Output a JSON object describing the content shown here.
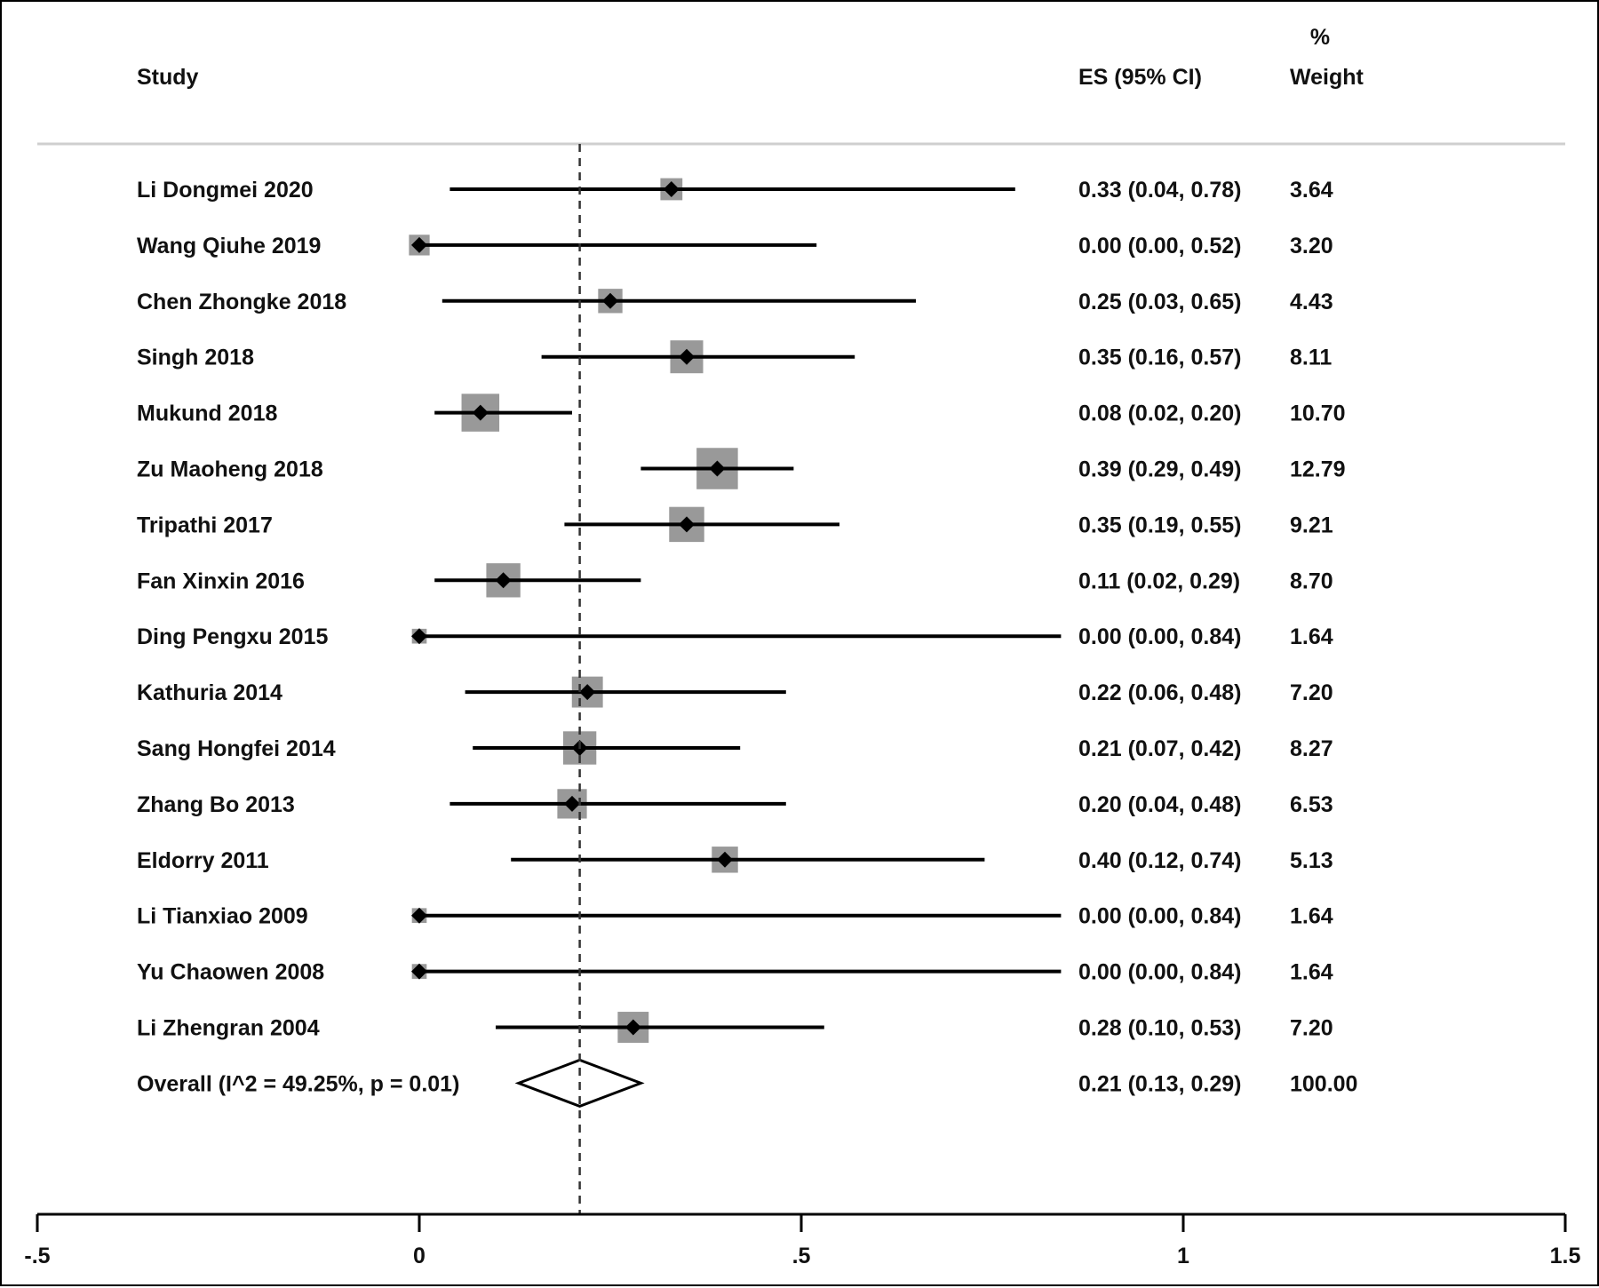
{
  "chart_data": {
    "type": "forest",
    "headers": {
      "study": "Study",
      "es": "ES (95% CI)",
      "weight_line1": "%",
      "weight_line2": "Weight"
    },
    "studies": [
      {
        "label": "Li Dongmei 2020",
        "es": 0.33,
        "lo": 0.04,
        "hi": 0.78,
        "es_text": "0.33 (0.04, 0.78)",
        "weight": 3.64,
        "weight_text": "3.64"
      },
      {
        "label": "Wang Qiuhe  2019",
        "es": 0.0,
        "lo": 0.0,
        "hi": 0.52,
        "es_text": "0.00 (0.00, 0.52)",
        "weight": 3.2,
        "weight_text": "3.20"
      },
      {
        "label": "Chen Zhongke 2018",
        "es": 0.25,
        "lo": 0.03,
        "hi": 0.65,
        "es_text": "0.25 (0.03, 0.65)",
        "weight": 4.43,
        "weight_text": "4.43"
      },
      {
        "label": "Singh 2018",
        "es": 0.35,
        "lo": 0.16,
        "hi": 0.57,
        "es_text": "0.35 (0.16, 0.57)",
        "weight": 8.11,
        "weight_text": "8.11"
      },
      {
        "label": "Mukund  2018",
        "es": 0.08,
        "lo": 0.02,
        "hi": 0.2,
        "es_text": "0.08 (0.02, 0.20)",
        "weight": 10.7,
        "weight_text": "10.70"
      },
      {
        "label": "Zu Maoheng 2018",
        "es": 0.39,
        "lo": 0.29,
        "hi": 0.49,
        "es_text": "0.39 (0.29, 0.49)",
        "weight": 12.79,
        "weight_text": "12.79"
      },
      {
        "label": "Tripathi  2017",
        "es": 0.35,
        "lo": 0.19,
        "hi": 0.55,
        "es_text": "0.35 (0.19, 0.55)",
        "weight": 9.21,
        "weight_text": "9.21"
      },
      {
        "label": "Fan Xinxin 2016",
        "es": 0.11,
        "lo": 0.02,
        "hi": 0.29,
        "es_text": "0.11 (0.02, 0.29)",
        "weight": 8.7,
        "weight_text": "8.70"
      },
      {
        "label": "Ding Pengxu 2015",
        "es": 0.0,
        "lo": 0.0,
        "hi": 0.84,
        "es_text": "0.00 (0.00, 0.84)",
        "weight": 1.64,
        "weight_text": "1.64"
      },
      {
        "label": "Kathuria  2014",
        "es": 0.22,
        "lo": 0.06,
        "hi": 0.48,
        "es_text": "0.22 (0.06, 0.48)",
        "weight": 7.2,
        "weight_text": "7.20"
      },
      {
        "label": "Sang Hongfei 2014",
        "es": 0.21,
        "lo": 0.07,
        "hi": 0.42,
        "es_text": "0.21 (0.07, 0.42)",
        "weight": 8.27,
        "weight_text": "8.27"
      },
      {
        "label": "Zhang Bo 2013",
        "es": 0.2,
        "lo": 0.04,
        "hi": 0.48,
        "es_text": "0.20 (0.04, 0.48)",
        "weight": 6.53,
        "weight_text": "6.53"
      },
      {
        "label": "Eldorry  2011",
        "es": 0.4,
        "lo": 0.12,
        "hi": 0.74,
        "es_text": "0.40 (0.12, 0.74)",
        "weight": 5.13,
        "weight_text": "5.13"
      },
      {
        "label": "Li Tianxiao 2009",
        "es": 0.0,
        "lo": 0.0,
        "hi": 0.84,
        "es_text": "0.00 (0.00, 0.84)",
        "weight": 1.64,
        "weight_text": "1.64"
      },
      {
        "label": "Yu Chaowen 2008",
        "es": 0.0,
        "lo": 0.0,
        "hi": 0.84,
        "es_text": "0.00 (0.00, 0.84)",
        "weight": 1.64,
        "weight_text": "1.64"
      },
      {
        "label": "Li Zhengran 2004",
        "es": 0.28,
        "lo": 0.1,
        "hi": 0.53,
        "es_text": "0.28 (0.10, 0.53)",
        "weight": 7.2,
        "weight_text": "7.20"
      }
    ],
    "overall": {
      "label": "Overall  (I^2 = 49.25%, p = 0.01)",
      "es": 0.21,
      "lo": 0.13,
      "hi": 0.29,
      "es_text": "0.21 (0.13, 0.29)",
      "weight_text": "100.00"
    },
    "x_axis": {
      "range": [
        -0.5,
        1.5
      ],
      "ticks": [
        -0.5,
        0,
        0.5,
        1,
        1.5
      ],
      "tick_labels": [
        "-.5",
        "0",
        ".5",
        "1",
        "1.5"
      ]
    },
    "reference_line": 0.21
  }
}
